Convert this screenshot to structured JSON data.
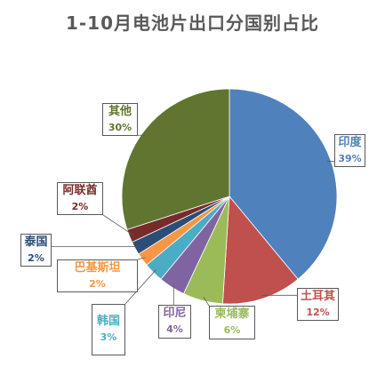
{
  "chart_data": {
    "type": "pie",
    "title": "1-10月电池片出口分国别占比",
    "slices": [
      {
        "name": "印度",
        "value": 39,
        "label": "39%",
        "color": "#4F81BD"
      },
      {
        "name": "土耳其",
        "value": 12,
        "label": "12%",
        "color": "#C0504D"
      },
      {
        "name": "柬埔寨",
        "value": 6,
        "label": "6%",
        "color": "#9BBB59"
      },
      {
        "name": "印尼",
        "value": 4,
        "label": "4%",
        "color": "#8064A2"
      },
      {
        "name": "韩国",
        "value": 3,
        "label": "3%",
        "color": "#4BACC6"
      },
      {
        "name": "巴基斯坦",
        "value": 2,
        "label": "2%",
        "color": "#F79646"
      },
      {
        "name": "泰国",
        "value": 2,
        "label": "2%",
        "color": "#2C4D75"
      },
      {
        "name": "阿联酋",
        "value": 2,
        "label": "2%",
        "color": "#772C2A"
      },
      {
        "name": "其他",
        "value": 30,
        "label": "30%",
        "color": "#5F7530"
      }
    ]
  }
}
